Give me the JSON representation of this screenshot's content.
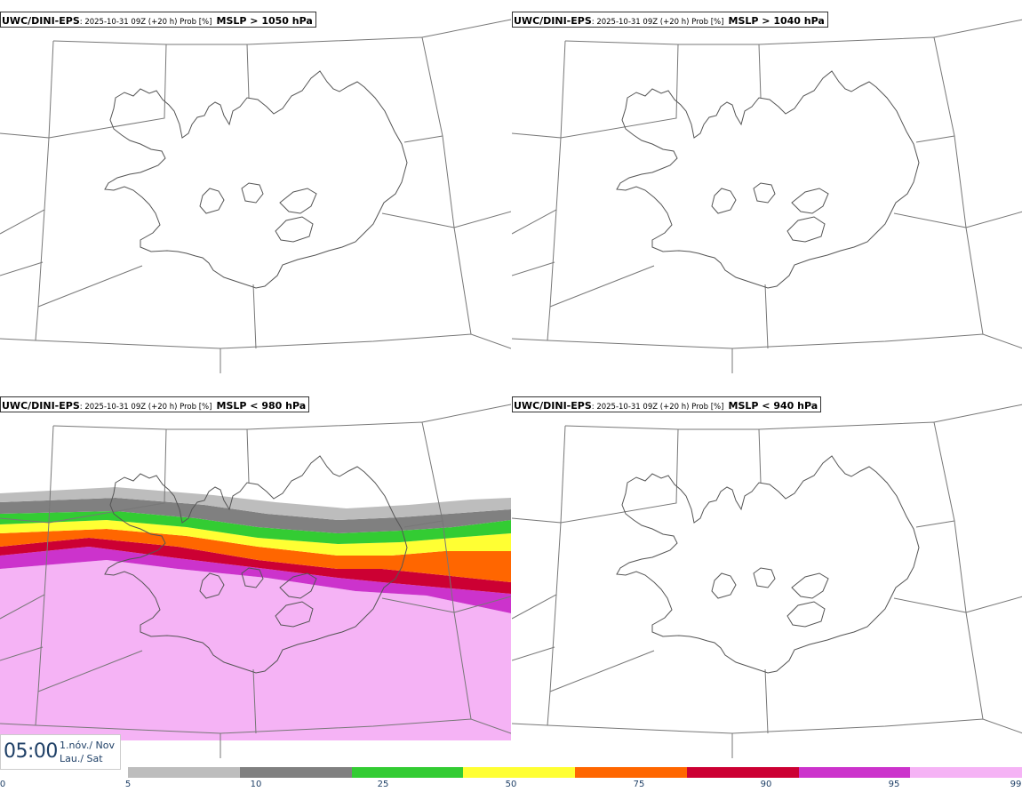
{
  "panels": [
    {
      "model": "UWC/DINI-EPS",
      "meta": ": 2025-10-31 09Z (+20 h) Prob [%]",
      "param": "MSLP > 1050 hPa",
      "filled": false
    },
    {
      "model": "UWC/DINI-EPS",
      "meta": ": 2025-10-31 09Z (+20 h) Prob [%]",
      "param": "MSLP > 1040 hPa",
      "filled": false
    },
    {
      "model": "UWC/DINI-EPS",
      "meta": ": 2025-10-31 09Z (+20 h) Prob [%]",
      "param": "MSLP < 980 hPa",
      "filled": true
    },
    {
      "model": "UWC/DINI-EPS",
      "meta": ": 2025-10-31 09Z (+20 h) Prob [%]",
      "param": "MSLP < 940 hPa",
      "filled": false
    }
  ],
  "valid": {
    "time": "05:00",
    "date_line1": "1.nóv./ Nov",
    "date_line2": "Lau./ Sat"
  },
  "colorbar": {
    "ticks": [
      "0",
      "5",
      "10",
      "25",
      "50",
      "75",
      "90",
      "95",
      "99"
    ],
    "colors": [
      "#bdbdbd",
      "#808080",
      "#33cc33",
      "#ffff33",
      "#ff6600",
      "#cc0033",
      "#cc33cc",
      "#f5b3f5"
    ]
  }
}
